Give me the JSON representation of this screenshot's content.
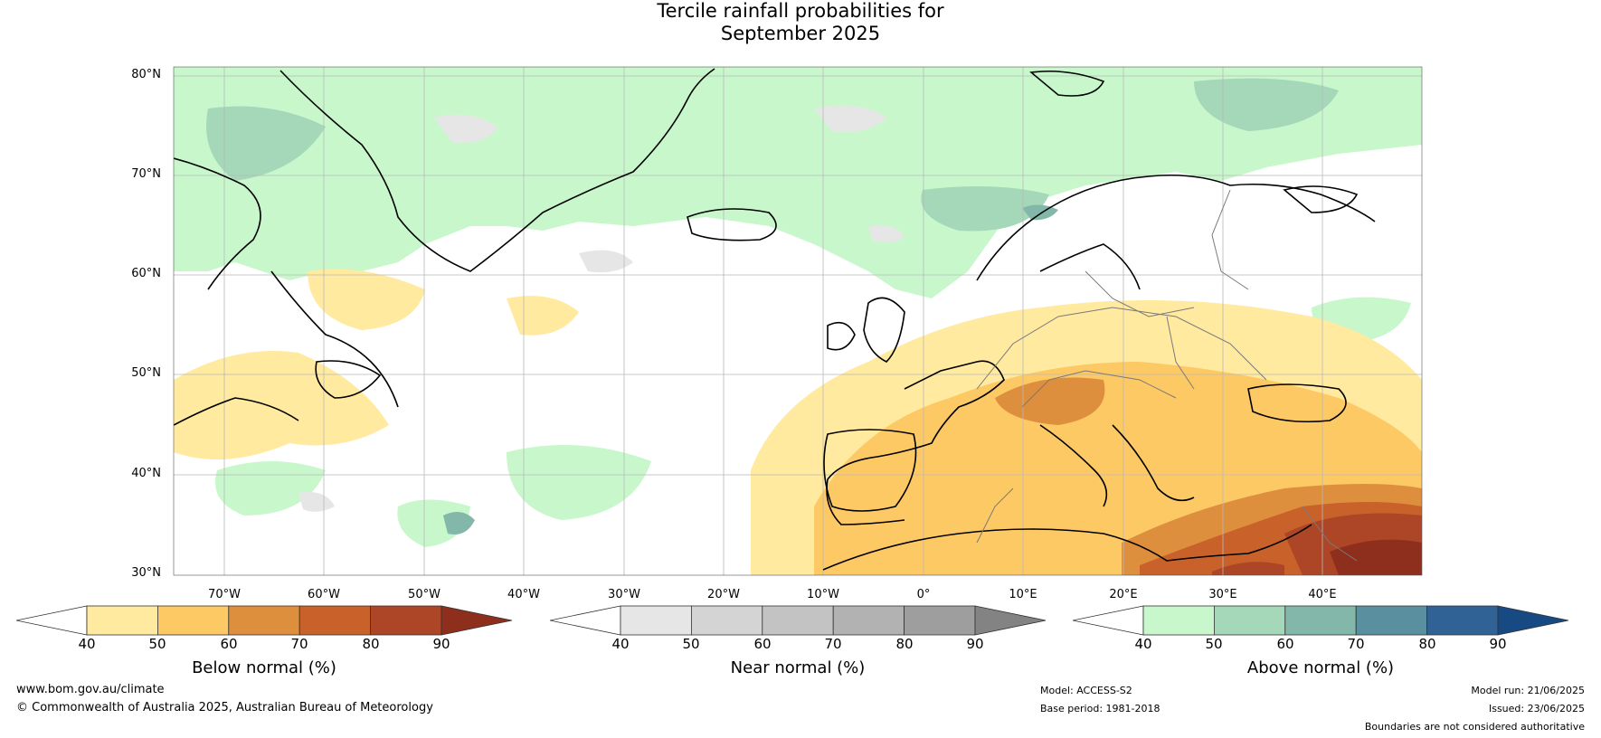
{
  "title": {
    "line1": "Tercile rainfall probabilities for",
    "line2": "September 2025"
  },
  "map": {
    "lat_labels": [
      "80°N",
      "70°N",
      "60°N",
      "50°N",
      "40°N",
      "30°N"
    ],
    "lon_labels": [
      "70°W",
      "60°W",
      "50°W",
      "40°W",
      "30°W",
      "20°W",
      "10°W",
      "0°",
      "10°E",
      "20°E",
      "30°E",
      "40°E"
    ],
    "extent": {
      "lon_min": -75,
      "lon_max": 50,
      "lat_min": 30,
      "lat_max": 80
    }
  },
  "colorbars": [
    {
      "title": "Below normal (%)",
      "ticks": [
        "40",
        "50",
        "60",
        "70",
        "80",
        "90"
      ],
      "colors": [
        "#ffffff",
        "#ffeaa0",
        "#fdc965",
        "#de8f3e",
        "#c8612a",
        "#ad4626",
        "#8e2f1e"
      ]
    },
    {
      "title": "Near normal (%)",
      "ticks": [
        "40",
        "50",
        "60",
        "70",
        "80",
        "90"
      ],
      "colors": [
        "#ffffff",
        "#e6e6e6",
        "#d4d4d4",
        "#c3c3c3",
        "#b2b2b2",
        "#9e9e9e",
        "#838383"
      ]
    },
    {
      "title": "Above normal (%)",
      "ticks": [
        "40",
        "50",
        "60",
        "70",
        "80",
        "90"
      ],
      "colors": [
        "#ffffff",
        "#c8f7cc",
        "#a5d8b8",
        "#82b7a9",
        "#5a8fa0",
        "#306296",
        "#174a82"
      ]
    }
  ],
  "footer": {
    "website": "www.bom.gov.au/climate",
    "copyright": "© Commonwealth of Australia 2025, Australian Bureau of Meteorology",
    "model": "Model: ACCESS-S2",
    "base_period": "Base period: 1981-2018",
    "model_run": "Model run: 21/06/2025",
    "issued": "Issued: 23/06/2025",
    "disclaimer": "Boundaries are not considered authoritative"
  }
}
